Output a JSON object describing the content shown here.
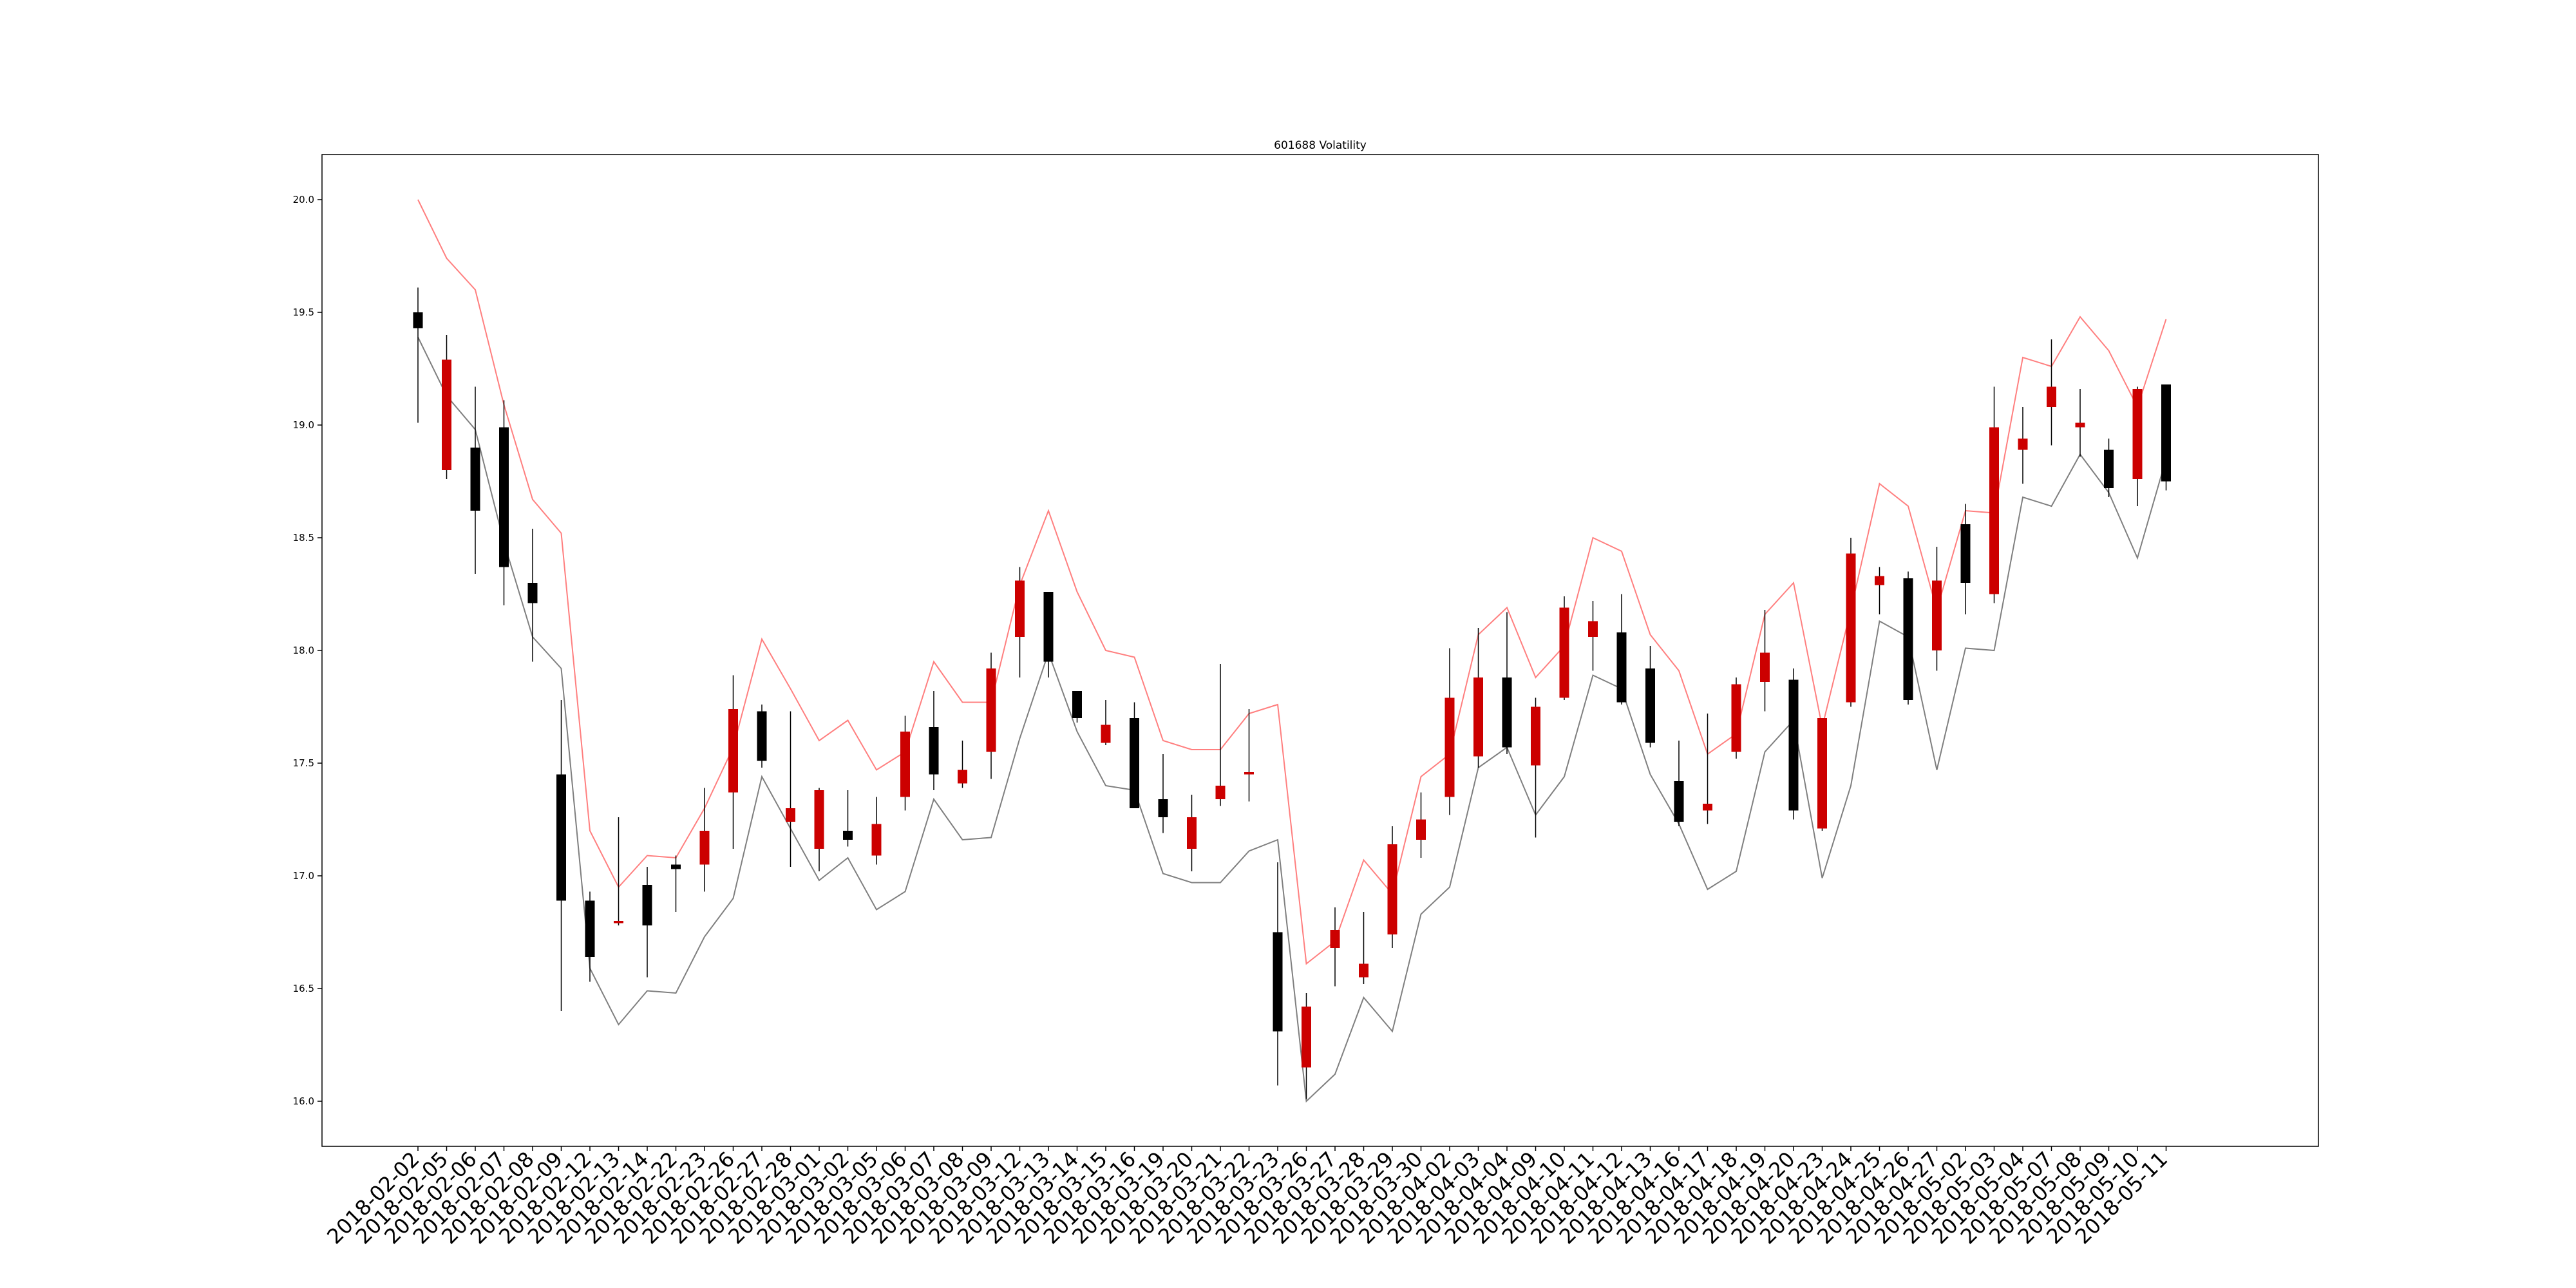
{
  "chart_data": {
    "type": "candlestick",
    "title": "601688 Volatility",
    "xlabel": "",
    "ylabel": "",
    "ylim": [
      15.8,
      20.2
    ],
    "y_ticks": [
      16.0,
      16.5,
      17.0,
      17.5,
      18.0,
      18.5,
      19.0,
      19.5,
      20.0
    ],
    "y_tick_labels": [
      "16.0",
      "16.5",
      "17.0",
      "17.5",
      "18.0",
      "18.5",
      "19.0",
      "19.5",
      "20.0"
    ],
    "grid": false,
    "colors": {
      "up": "#cc0000",
      "down": "#000000",
      "upper_band": "#ff7f7f",
      "lower_band": "#7f7f7f"
    },
    "categories": [
      "2018-02-02",
      "2018-02-05",
      "2018-02-06",
      "2018-02-07",
      "2018-02-08",
      "2018-02-09",
      "2018-02-12",
      "2018-02-13",
      "2018-02-14",
      "2018-02-22",
      "2018-02-23",
      "2018-02-26",
      "2018-02-27",
      "2018-02-28",
      "2018-03-01",
      "2018-03-02",
      "2018-03-05",
      "2018-03-06",
      "2018-03-07",
      "2018-03-08",
      "2018-03-09",
      "2018-03-12",
      "2018-03-13",
      "2018-03-14",
      "2018-03-15",
      "2018-03-16",
      "2018-03-19",
      "2018-03-20",
      "2018-03-21",
      "2018-03-22",
      "2018-03-23",
      "2018-03-26",
      "2018-03-27",
      "2018-03-28",
      "2018-03-29",
      "2018-03-30",
      "2018-04-02",
      "2018-04-03",
      "2018-04-04",
      "2018-04-09",
      "2018-04-10",
      "2018-04-11",
      "2018-04-12",
      "2018-04-13",
      "2018-04-16",
      "2018-04-17",
      "2018-04-18",
      "2018-04-19",
      "2018-04-20",
      "2018-04-23",
      "2018-04-24",
      "2018-04-25",
      "2018-04-26",
      "2018-04-27",
      "2018-05-02",
      "2018-05-03",
      "2018-05-04",
      "2018-05-07",
      "2018-05-08",
      "2018-05-09",
      "2018-05-10",
      "2018-05-11"
    ],
    "candles": [
      {
        "open": 19.5,
        "close": 19.43,
        "high": 19.61,
        "low": 19.01
      },
      {
        "open": 18.8,
        "close": 19.29,
        "high": 19.4,
        "low": 18.76
      },
      {
        "open": 18.9,
        "close": 18.62,
        "high": 19.17,
        "low": 18.34
      },
      {
        "open": 18.99,
        "close": 18.37,
        "high": 19.11,
        "low": 18.2
      },
      {
        "open": 18.3,
        "close": 18.21,
        "high": 18.54,
        "low": 17.95
      },
      {
        "open": 17.45,
        "close": 16.89,
        "high": 17.78,
        "low": 16.4
      },
      {
        "open": 16.89,
        "close": 16.64,
        "high": 16.93,
        "low": 16.53
      },
      {
        "open": 16.79,
        "close": 16.8,
        "high": 17.26,
        "low": 16.78
      },
      {
        "open": 16.96,
        "close": 16.78,
        "high": 17.04,
        "low": 16.55
      },
      {
        "open": 17.05,
        "close": 17.03,
        "high": 17.09,
        "low": 16.84
      },
      {
        "open": 17.05,
        "close": 17.2,
        "high": 17.39,
        "low": 16.93
      },
      {
        "open": 17.37,
        "close": 17.74,
        "high": 17.89,
        "low": 17.12
      },
      {
        "open": 17.73,
        "close": 17.51,
        "high": 17.76,
        "low": 17.48
      },
      {
        "open": 17.24,
        "close": 17.3,
        "high": 17.73,
        "low": 17.04
      },
      {
        "open": 17.12,
        "close": 17.38,
        "high": 17.39,
        "low": 17.02
      },
      {
        "open": 17.2,
        "close": 17.16,
        "high": 17.38,
        "low": 17.13
      },
      {
        "open": 17.09,
        "close": 17.23,
        "high": 17.35,
        "low": 17.05
      },
      {
        "open": 17.35,
        "close": 17.64,
        "high": 17.71,
        "low": 17.29
      },
      {
        "open": 17.66,
        "close": 17.45,
        "high": 17.82,
        "low": 17.38
      },
      {
        "open": 17.41,
        "close": 17.47,
        "high": 17.6,
        "low": 17.39
      },
      {
        "open": 17.55,
        "close": 17.92,
        "high": 17.99,
        "low": 17.43
      },
      {
        "open": 18.06,
        "close": 18.31,
        "high": 18.37,
        "low": 17.88
      },
      {
        "open": 18.26,
        "close": 17.95,
        "high": 18.26,
        "low": 17.88
      },
      {
        "open": 17.82,
        "close": 17.7,
        "high": 17.82,
        "low": 17.68
      },
      {
        "open": 17.59,
        "close": 17.67,
        "high": 17.78,
        "low": 17.58
      },
      {
        "open": 17.7,
        "close": 17.3,
        "high": 17.77,
        "low": 17.3
      },
      {
        "open": 17.34,
        "close": 17.26,
        "high": 17.54,
        "low": 17.19
      },
      {
        "open": 17.12,
        "close": 17.26,
        "high": 17.36,
        "low": 17.02
      },
      {
        "open": 17.34,
        "close": 17.4,
        "high": 17.94,
        "low": 17.31
      },
      {
        "open": 17.45,
        "close": 17.46,
        "high": 17.74,
        "low": 17.33
      },
      {
        "open": 16.75,
        "close": 16.31,
        "high": 17.06,
        "low": 16.07
      },
      {
        "open": 16.15,
        "close": 16.42,
        "high": 16.48,
        "low": 16.01
      },
      {
        "open": 16.68,
        "close": 16.76,
        "high": 16.86,
        "low": 16.51
      },
      {
        "open": 16.55,
        "close": 16.61,
        "high": 16.84,
        "low": 16.52
      },
      {
        "open": 16.74,
        "close": 17.14,
        "high": 17.22,
        "low": 16.68
      },
      {
        "open": 17.16,
        "close": 17.25,
        "high": 17.37,
        "low": 17.08
      },
      {
        "open": 17.35,
        "close": 17.79,
        "high": 18.01,
        "low": 17.27
      },
      {
        "open": 17.53,
        "close": 17.88,
        "high": 18.1,
        "low": 17.48
      },
      {
        "open": 17.88,
        "close": 17.57,
        "high": 18.17,
        "low": 17.54
      },
      {
        "open": 17.49,
        "close": 17.75,
        "high": 17.79,
        "low": 17.17
      },
      {
        "open": 17.79,
        "close": 18.19,
        "high": 18.24,
        "low": 17.78
      },
      {
        "open": 18.06,
        "close": 18.13,
        "high": 18.22,
        "low": 17.91
      },
      {
        "open": 18.08,
        "close": 17.77,
        "high": 18.25,
        "low": 17.76
      },
      {
        "open": 17.92,
        "close": 17.59,
        "high": 18.02,
        "low": 17.57
      },
      {
        "open": 17.42,
        "close": 17.24,
        "high": 17.6,
        "low": 17.22
      },
      {
        "open": 17.29,
        "close": 17.32,
        "high": 17.72,
        "low": 17.23
      },
      {
        "open": 17.55,
        "close": 17.85,
        "high": 17.88,
        "low": 17.52
      },
      {
        "open": 17.86,
        "close": 17.99,
        "high": 18.18,
        "low": 17.73
      },
      {
        "open": 17.87,
        "close": 17.29,
        "high": 17.92,
        "low": 17.25
      },
      {
        "open": 17.21,
        "close": 17.7,
        "high": 17.7,
        "low": 17.2
      },
      {
        "open": 17.77,
        "close": 18.43,
        "high": 18.5,
        "low": 17.75
      },
      {
        "open": 18.29,
        "close": 18.33,
        "high": 18.37,
        "low": 18.16
      },
      {
        "open": 18.32,
        "close": 17.78,
        "high": 18.35,
        "low": 17.76
      },
      {
        "open": 18.0,
        "close": 18.31,
        "high": 18.46,
        "low": 17.91
      },
      {
        "open": 18.56,
        "close": 18.3,
        "high": 18.65,
        "low": 18.16
      },
      {
        "open": 18.25,
        "close": 18.99,
        "high": 19.17,
        "low": 18.21
      },
      {
        "open": 18.89,
        "close": 18.94,
        "high": 19.08,
        "low": 18.74
      },
      {
        "open": 19.08,
        "close": 19.17,
        "high": 19.38,
        "low": 18.91
      },
      {
        "open": 18.99,
        "close": 19.01,
        "high": 19.16,
        "low": 18.86
      },
      {
        "open": 18.89,
        "close": 18.72,
        "high": 18.94,
        "low": 18.68
      },
      {
        "open": 18.76,
        "close": 19.16,
        "high": 19.17,
        "low": 18.64
      },
      {
        "open": 19.18,
        "close": 18.75,
        "high": 19.18,
        "low": 18.71
      }
    ],
    "series": [
      {
        "values": [
          20.0,
          19.74,
          19.6,
          19.09,
          18.67,
          18.52,
          17.2,
          16.95,
          17.09,
          17.08,
          17.3,
          17.57,
          18.05,
          17.83,
          17.6,
          17.69,
          17.47,
          17.55,
          17.95,
          17.77,
          17.77,
          18.29,
          18.62,
          18.26,
          18.0,
          17.97,
          17.6,
          17.56,
          17.56,
          17.72,
          17.76,
          16.61,
          16.71,
          17.07,
          16.92,
          17.44,
          17.54,
          18.07,
          18.19,
          17.88,
          18.02,
          18.5,
          18.44,
          18.07,
          17.91,
          17.54,
          17.63,
          18.16,
          18.3,
          17.66,
          18.18,
          18.74,
          18.64,
          18.18,
          18.62,
          18.61,
          19.3,
          19.26,
          19.48,
          19.33,
          19.08,
          19.47
        ]
      },
      {
        "values": [
          19.39,
          19.13,
          18.98,
          18.48,
          18.06,
          17.92,
          16.59,
          16.34,
          16.49,
          16.48,
          16.73,
          16.9,
          17.44,
          17.21,
          16.98,
          17.08,
          16.85,
          16.93,
          17.34,
          17.16,
          17.17,
          17.61,
          17.99,
          17.64,
          17.4,
          17.38,
          17.01,
          16.97,
          16.97,
          17.11,
          17.16,
          16.0,
          16.12,
          16.46,
          16.31,
          16.83,
          16.95,
          17.48,
          17.57,
          17.27,
          17.44,
          17.89,
          17.83,
          17.45,
          17.23,
          16.94,
          17.02,
          17.55,
          17.69,
          16.99,
          17.4,
          18.13,
          18.06,
          17.47,
          18.01,
          18.0,
          18.68,
          18.64,
          18.87,
          18.7,
          18.41,
          18.85
        ]
      }
    ]
  }
}
